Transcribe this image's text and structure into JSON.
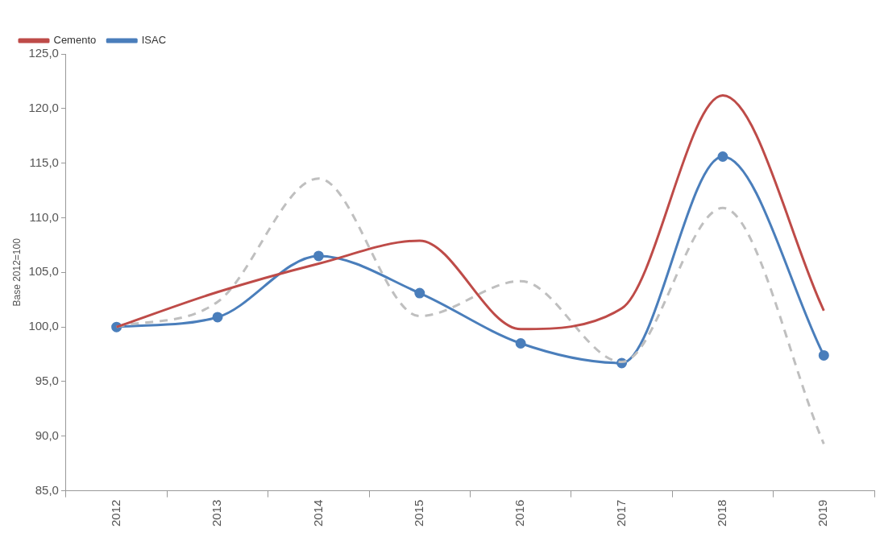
{
  "chart_data": {
    "type": "line",
    "ylabel": "Base 2012=100",
    "categories": [
      "2012",
      "2013",
      "2014",
      "2015",
      "2016",
      "2017",
      "2018",
      "2019"
    ],
    "series": [
      {
        "name": "ISAC",
        "color": "#4a7ebb",
        "marker": "circle",
        "line_style": "solid",
        "values": [
          100.0,
          100.9,
          106.5,
          103.1,
          98.5,
          96.7,
          115.6,
          97.4
        ]
      },
      {
        "name": "Cemento",
        "color": "#be4b48",
        "marker": "none",
        "line_style": "solid",
        "values": [
          100.0,
          103.2,
          105.8,
          107.9,
          99.8,
          101.7,
          121.2,
          101.5
        ]
      },
      {
        "color": "#bfbfbf",
        "marker": "none",
        "line_style": "dashed",
        "values": [
          100.0,
          102.3,
          113.6,
          101.0,
          104.2,
          96.8,
          110.9,
          89.3
        ]
      }
    ],
    "ylim": [
      85,
      125
    ],
    "yticks": [
      {
        "value": 85,
        "label": "85,0"
      },
      {
        "value": 90,
        "label": "90,0"
      },
      {
        "value": 95,
        "label": "95,0"
      },
      {
        "value": 100,
        "label": "100,0"
      },
      {
        "value": 105,
        "label": "105,0"
      },
      {
        "value": 110,
        "label": "110,0"
      },
      {
        "value": 115,
        "label": "115,0"
      },
      {
        "value": 120,
        "label": "120,0"
      },
      {
        "value": 125,
        "label": "125,0"
      }
    ],
    "grid": false,
    "legend": "top left"
  }
}
